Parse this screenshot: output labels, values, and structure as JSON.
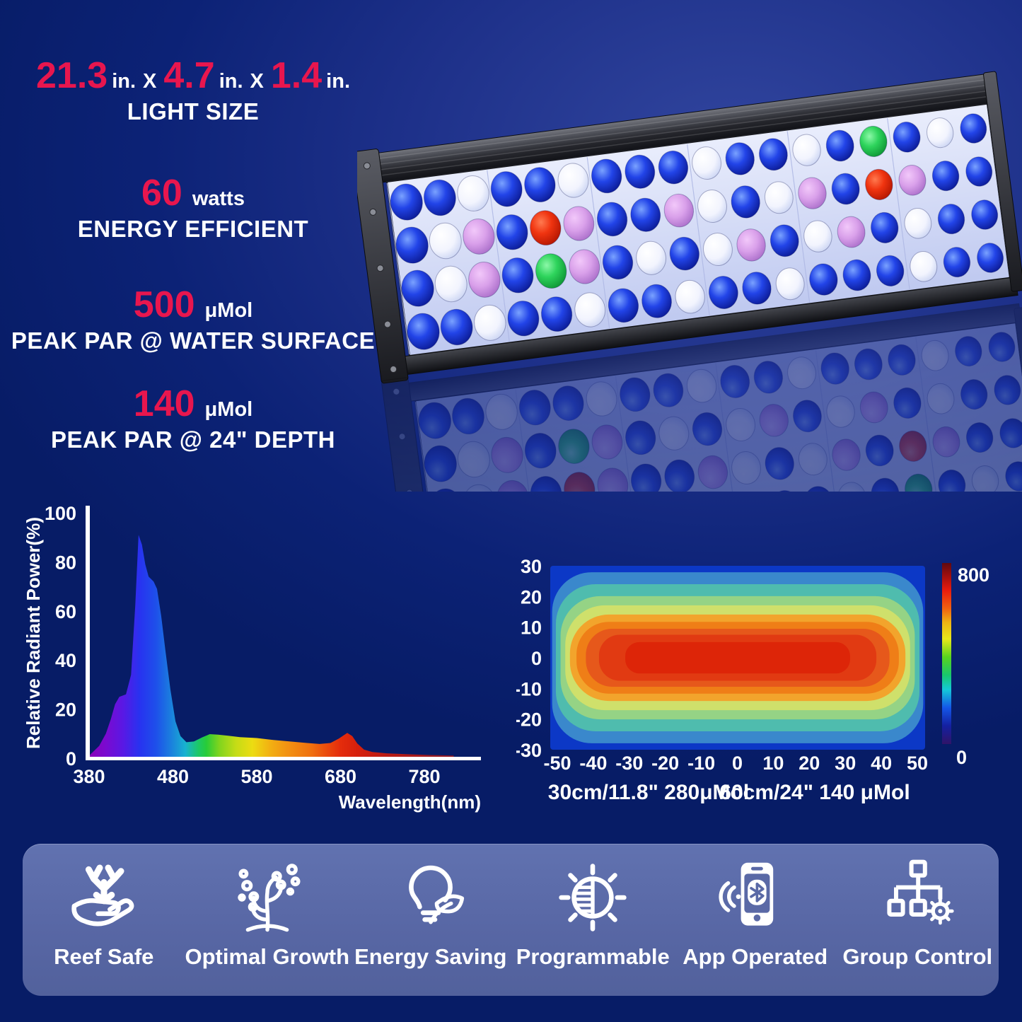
{
  "colors": {
    "accent_red": "#e8164e",
    "text_white": "#ffffff",
    "background_navy": "#0a2173",
    "background_glow": "#2c3f9c",
    "feature_band": "#5a69a6",
    "led_blue": "#1839d8",
    "led_white": "#eef1fd",
    "led_pink": "#d9a0e8",
    "led_red": "#e83418",
    "led_green": "#35d858"
  },
  "specs": {
    "size": {
      "dim1": {
        "value": "21.3",
        "unit": "in."
      },
      "x1": "X",
      "dim2": {
        "value": "4.7",
        "unit": "in."
      },
      "x2": "X",
      "dim3": {
        "value": "1.4",
        "unit": "in."
      },
      "caption": "LIGHT SIZE"
    },
    "wattage": {
      "value": "60",
      "unit": "watts",
      "caption": "ENERGY EFFICIENT"
    },
    "par_surface": {
      "value": "500",
      "unit": "μMol",
      "caption": "PEAK PAR @ WATER SURFACE"
    },
    "par_depth": {
      "value": "140",
      "unit": "μMol",
      "caption": "PEAK PAR @ 24\" DEPTH"
    }
  },
  "chart_data": [
    {
      "type": "area",
      "name": "spectrum",
      "title": "",
      "xlabel": "Wavelength(nm)",
      "ylabel": "Relative Radiant Power(%)",
      "xticks": [
        380,
        480,
        580,
        680,
        780
      ],
      "yticks": [
        0,
        20,
        40,
        60,
        80,
        100
      ],
      "xlim": [
        375,
        830
      ],
      "ylim": [
        0,
        100
      ],
      "grid": false,
      "fill": "spectral-rainbow-gradient",
      "points": [
        [
          380,
          1
        ],
        [
          392,
          5
        ],
        [
          400,
          10
        ],
        [
          406,
          16
        ],
        [
          411,
          22
        ],
        [
          416,
          25
        ],
        [
          424,
          26
        ],
        [
          430,
          34
        ],
        [
          435,
          62
        ],
        [
          439,
          91
        ],
        [
          443,
          87
        ],
        [
          447,
          79
        ],
        [
          451,
          74
        ],
        [
          457,
          72
        ],
        [
          461,
          69
        ],
        [
          466,
          58
        ],
        [
          471,
          44
        ],
        [
          477,
          28
        ],
        [
          483,
          15
        ],
        [
          489,
          9
        ],
        [
          496,
          6.5
        ],
        [
          505,
          6.8
        ],
        [
          515,
          8.5
        ],
        [
          524,
          9.8
        ],
        [
          534,
          9.6
        ],
        [
          545,
          9.2
        ],
        [
          560,
          8.6
        ],
        [
          580,
          8.2
        ],
        [
          600,
          7.4
        ],
        [
          620,
          6.8
        ],
        [
          640,
          6.2
        ],
        [
          655,
          5.8
        ],
        [
          668,
          6.2
        ],
        [
          678,
          8
        ],
        [
          688,
          10.3
        ],
        [
          694,
          9
        ],
        [
          700,
          6
        ],
        [
          708,
          3.5
        ],
        [
          718,
          2.5
        ],
        [
          735,
          2
        ],
        [
          760,
          1.6
        ],
        [
          785,
          1.3
        ],
        [
          815,
          1.1
        ]
      ]
    },
    {
      "type": "heatmap",
      "name": "par-distribution",
      "xticks": [
        -50,
        -40,
        -30,
        -20,
        -10,
        0,
        10,
        20,
        30,
        40,
        50
      ],
      "yticks": [
        30,
        20,
        10,
        0,
        -10,
        -20,
        -30
      ],
      "xlim": [
        -50,
        50
      ],
      "ylim": [
        -30,
        30
      ],
      "peak_value": 800,
      "colorbar": {
        "max_label": "800",
        "min_label": "0"
      },
      "bands": [
        {
          "level": 0,
          "color": "#0c38c6"
        },
        {
          "level": 100,
          "color": "#3a88cc"
        },
        {
          "level": 200,
          "color": "#4fbcae"
        },
        {
          "level": 300,
          "color": "#95d385"
        },
        {
          "level": 350,
          "color": "#cfe06b"
        },
        {
          "level": 400,
          "color": "#f2a42c"
        },
        {
          "level": 500,
          "color": "#ef7e17"
        },
        {
          "level": 600,
          "color": "#e6581b"
        },
        {
          "level": 700,
          "color": "#e13a12"
        },
        {
          "level": 750,
          "color": "#dd2508"
        }
      ],
      "captions": [
        {
          "distance": "30cm/11.8\"",
          "par": "280μMol"
        },
        {
          "distance": "60cm/24\"",
          "par": "140 μMol"
        }
      ]
    }
  ],
  "features": [
    {
      "label": "Reef Safe",
      "icon": "coral-hand-icon"
    },
    {
      "label": "Optimal Growth",
      "icon": "coral-growth-icon"
    },
    {
      "label": "Energy Saving",
      "icon": "bulb-leaf-icon"
    },
    {
      "label": "Programmable",
      "icon": "dimmer-dial-icon"
    },
    {
      "label": "App Operated",
      "icon": "phone-bluetooth-icon"
    },
    {
      "label": "Group Control",
      "icon": "group-network-icon"
    }
  ],
  "led_panel": {
    "legend": {
      "B": "blue",
      "W": "white",
      "P": "pink",
      "R": "red",
      "G": "green"
    },
    "rows": [
      "BBWBBWBBBWBBWBGBWB",
      "BWPBRPBBPWBWPBRPBB",
      "BWPBGPBWBWPBWPBWBB",
      "BBWBBWBBWBBWBBBWBB"
    ]
  }
}
